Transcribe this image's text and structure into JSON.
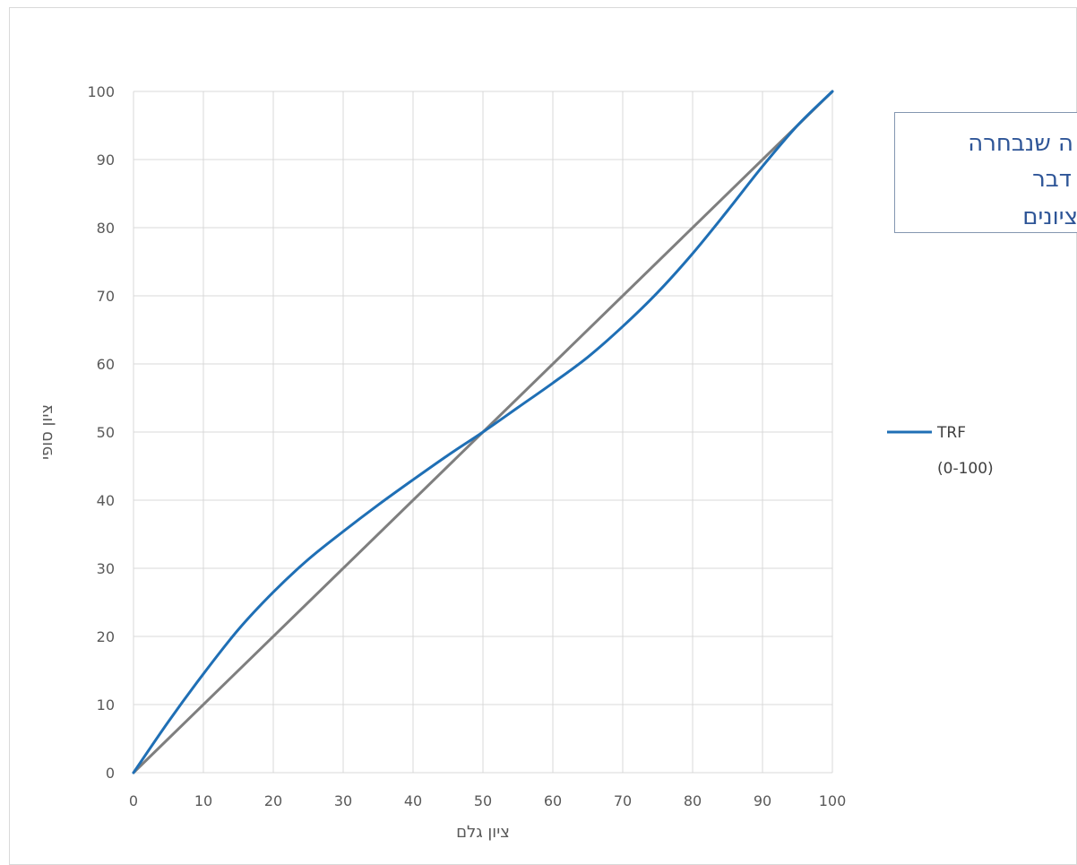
{
  "chart_data": {
    "type": "line",
    "title": "",
    "xlabel": "ציון גלם",
    "ylabel": "ציון סופי",
    "xlim": [
      0,
      100
    ],
    "ylim": [
      0,
      100
    ],
    "x_ticks": [
      0,
      10,
      20,
      30,
      40,
      50,
      60,
      70,
      80,
      90,
      100
    ],
    "y_ticks": [
      0,
      10,
      20,
      30,
      40,
      50,
      60,
      70,
      80,
      90,
      100
    ],
    "grid": true,
    "legend_position": "right",
    "legend_label_lines": [
      "TRF",
      "(0-100)"
    ],
    "series": [
      {
        "name": "TRF (0-100)",
        "legend": true,
        "color": "#1f6fb5",
        "x": [
          0,
          5,
          10,
          15,
          20,
          25,
          30,
          35,
          40,
          45,
          50,
          55,
          60,
          65,
          70,
          75,
          80,
          85,
          90,
          95,
          100
        ],
        "y": [
          0,
          7.5,
          14.5,
          21,
          26.5,
          31.3,
          35.4,
          39.3,
          43,
          46.6,
          50,
          53.6,
          57.2,
          61,
          65.5,
          70.5,
          76.2,
          82.5,
          89,
          95,
          100
        ]
      },
      {
        "name": "",
        "legend": false,
        "color": "#7f7f7f",
        "x": [
          0,
          100
        ],
        "y": [
          0,
          100
        ]
      }
    ]
  },
  "annotation": {
    "lines": [
      "ה שנבחרה",
      "דבר",
      "ציונים"
    ],
    "text_color": "#2e5597",
    "border_color": "#8497b0"
  }
}
